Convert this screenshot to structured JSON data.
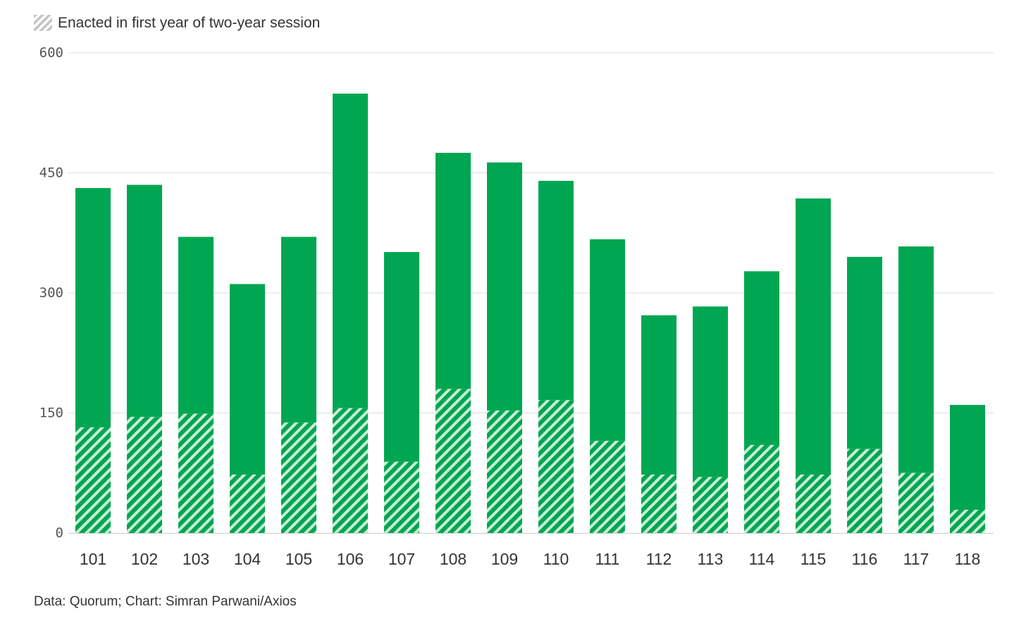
{
  "chart_data": {
    "type": "bar",
    "stacked": true,
    "categories": [
      "101",
      "102",
      "103",
      "104",
      "105",
      "106",
      "107",
      "108",
      "109",
      "110",
      "111",
      "112",
      "113",
      "114",
      "115",
      "116",
      "117",
      "118"
    ],
    "series": [
      {
        "name": "Enacted in first year of two-year session",
        "pattern": "hatched",
        "values": [
          132,
          145,
          149,
          73,
          138,
          156,
          89,
          180,
          153,
          166,
          115,
          73,
          70,
          110,
          73,
          105,
          75,
          29
        ]
      },
      {
        "pattern": "solid",
        "values": [
          299,
          290,
          221,
          238,
          232,
          393,
          262,
          295,
          310,
          274,
          252,
          199,
          213,
          217,
          345,
          240,
          283,
          131
        ]
      }
    ],
    "ylim": [
      0,
      600
    ],
    "yticks": [
      0,
      150,
      300,
      450,
      600
    ],
    "grid": true,
    "legend_position": "top-left",
    "colors": {
      "bar": "#00a651",
      "hatch_light": "#c9efd8",
      "legend_swatch": "#c4c4c4",
      "grid": "#dddddd",
      "axis": "#cccccc"
    }
  },
  "legend": {
    "label": "Enacted in first year of two-year session"
  },
  "source": "Data: Quorum; Chart: Simran Parwani/Axios"
}
